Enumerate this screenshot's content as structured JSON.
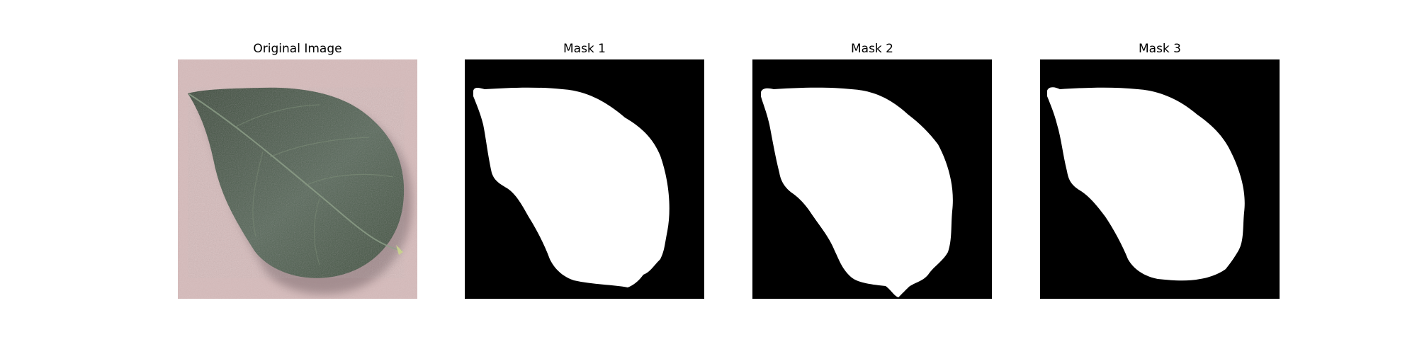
{
  "figure": {
    "panels": [
      {
        "title": "Original Image"
      },
      {
        "title": "Mask 1"
      },
      {
        "title": "Mask 2"
      },
      {
        "title": "Mask 3"
      }
    ],
    "colors": {
      "background": "#ffffff",
      "surface": "#d8bdbd",
      "leaf": "#4f5f4c",
      "leaf_dark": "#36432f",
      "mask_background": "#000000",
      "mask_foreground": "#ffffff"
    }
  }
}
